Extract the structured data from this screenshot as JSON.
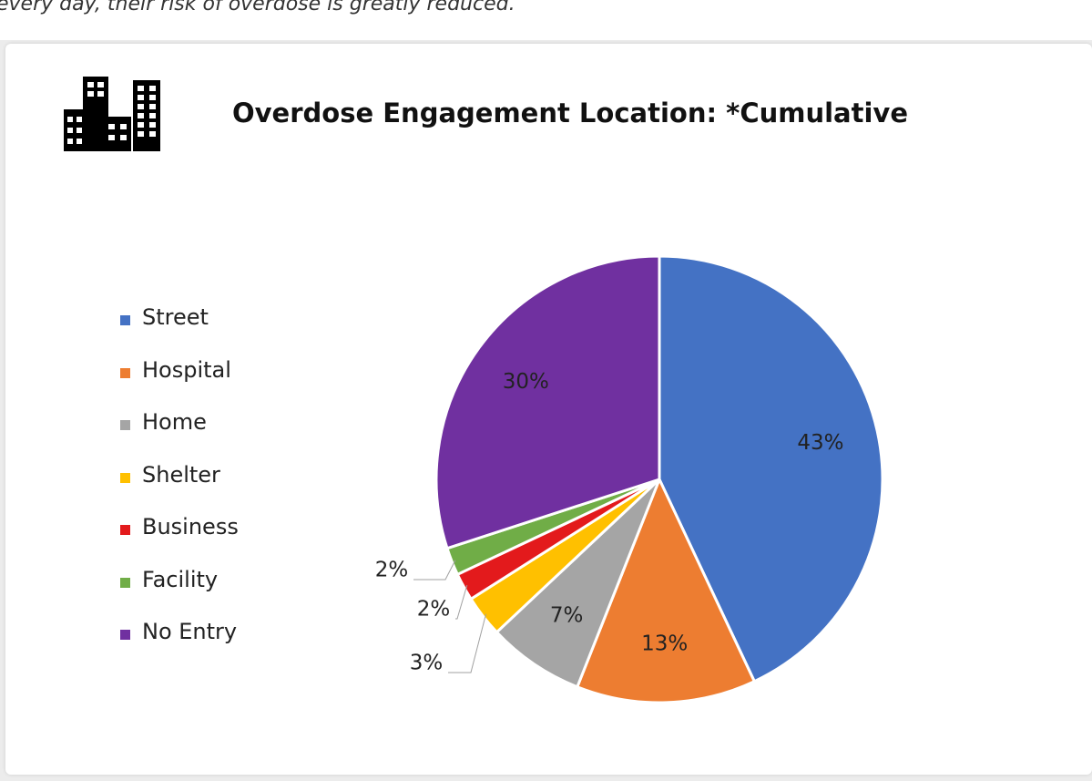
{
  "intro": {
    "text": "every day, their risk of overdose is greatly reduced."
  },
  "icon": "office-buildings-icon",
  "chart_data": {
    "type": "pie",
    "title": "Overdose Engagement Location: *Cumulative",
    "legend_position": "left",
    "slices": [
      {
        "name": "Street",
        "value": 43,
        "label": "43%",
        "color": "#4472c4"
      },
      {
        "name": "Hospital",
        "value": 13,
        "label": "13%",
        "color": "#ed7d31"
      },
      {
        "name": "Home",
        "value": 7,
        "label": "7%",
        "color": "#a5a5a5"
      },
      {
        "name": "Shelter",
        "value": 3,
        "label": "3%",
        "color": "#ffc000"
      },
      {
        "name": "Business",
        "value": 2,
        "label": "2%",
        "color": "#e31a1c"
      },
      {
        "name": "Facility",
        "value": 2,
        "label": "2%",
        "color": "#70ad47"
      },
      {
        "name": "No Entry",
        "value": 30,
        "label": "30%",
        "color": "#7030a0"
      }
    ]
  }
}
